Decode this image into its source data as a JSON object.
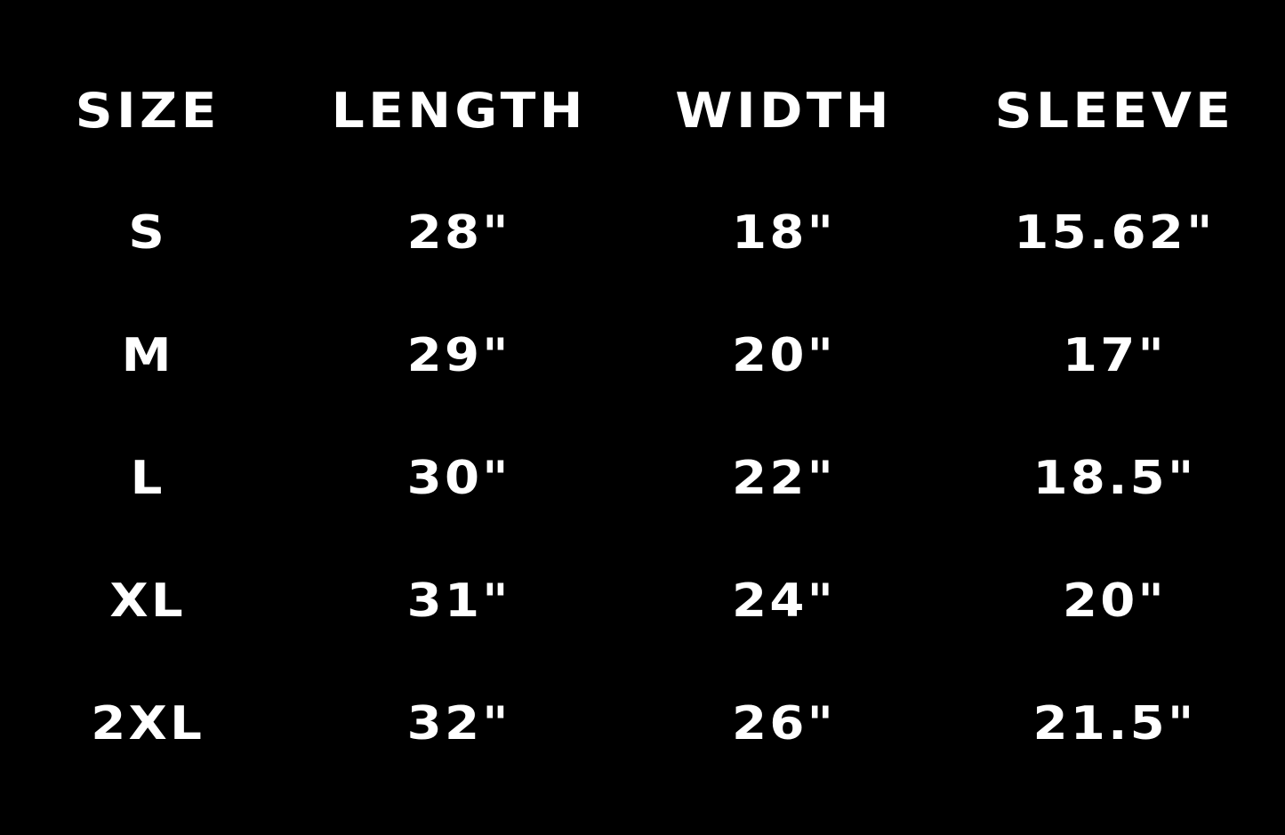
{
  "page": {
    "background_color": "#000000",
    "text_color": "#ffffff"
  },
  "size_chart": {
    "columns": [
      "SIZE",
      "LENGTH",
      "WIDTH",
      "SLEEVE"
    ],
    "rows": [
      {
        "size": "S",
        "length": "28\"",
        "width": "18\"",
        "sleeve": "15.62\""
      },
      {
        "size": "M",
        "length": "29\"",
        "width": "20\"",
        "sleeve": "17\""
      },
      {
        "size": "L",
        "length": "30\"",
        "width": "22\"",
        "sleeve": "18.5\""
      },
      {
        "size": "XL",
        "length": "31\"",
        "width": "24\"",
        "sleeve": "20\""
      },
      {
        "size": "2XL",
        "length": "32\"",
        "width": "26\"",
        "sleeve": "21.5\""
      }
    ]
  },
  "chart_data": {
    "type": "table",
    "title": "",
    "columns": [
      "SIZE",
      "LENGTH",
      "WIDTH",
      "SLEEVE"
    ],
    "units": "inches",
    "rows": [
      [
        "S",
        28,
        18,
        15.62
      ],
      [
        "M",
        29,
        20,
        17
      ],
      [
        "L",
        30,
        22,
        18.5
      ],
      [
        "XL",
        31,
        24,
        20
      ],
      [
        "2XL",
        32,
        26,
        21.5
      ]
    ]
  }
}
